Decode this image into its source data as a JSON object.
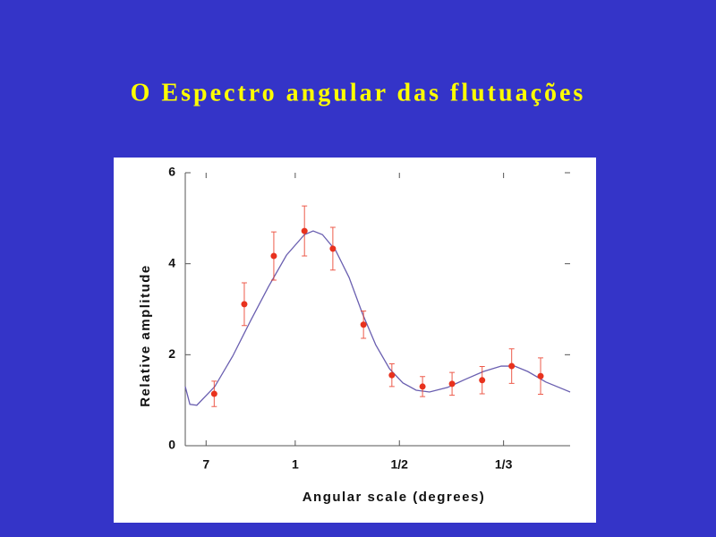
{
  "chart_data": {
    "type": "scatter",
    "title": "O Espectro angular das flutuações",
    "xlabel": "Angular scale (degrees)",
    "ylabel": "Relative amplitude",
    "xlim": [
      -10,
      655
    ],
    "ylim": [
      0,
      6
    ],
    "xticks": [
      {
        "value": 26,
        "label": "7"
      },
      {
        "value": 180,
        "label": "1"
      },
      {
        "value": 360,
        "label": "1/2"
      },
      {
        "value": 540,
        "label": "1/3"
      }
    ],
    "yticks": [
      0,
      2,
      4,
      6
    ],
    "points": {
      "color": "#e8321e",
      "x": [
        40,
        92,
        143,
        196,
        245,
        298,
        347,
        400,
        451,
        503,
        554,
        604
      ],
      "values": [
        1.14,
        3.11,
        4.17,
        4.72,
        4.33,
        2.66,
        1.55,
        1.3,
        1.36,
        1.44,
        1.75,
        1.53
      ],
      "errors": [
        0.28,
        0.47,
        0.53,
        0.55,
        0.47,
        0.3,
        0.25,
        0.22,
        0.25,
        0.3,
        0.38,
        0.4
      ]
    },
    "fit": {
      "color": "#6a5fb0",
      "x": [
        -10,
        -2,
        10,
        41,
        72,
        103,
        134,
        165,
        196,
        211,
        227,
        250,
        273,
        296,
        319,
        343,
        366,
        389,
        412,
        443,
        474,
        505,
        536,
        559,
        582,
        613,
        655
      ],
      "values": [
        1.3,
        0.91,
        0.89,
        1.3,
        1.97,
        2.75,
        3.5,
        4.19,
        4.64,
        4.72,
        4.64,
        4.29,
        3.7,
        2.91,
        2.22,
        1.69,
        1.38,
        1.22,
        1.18,
        1.28,
        1.46,
        1.63,
        1.75,
        1.75,
        1.63,
        1.4,
        1.18
      ]
    }
  }
}
